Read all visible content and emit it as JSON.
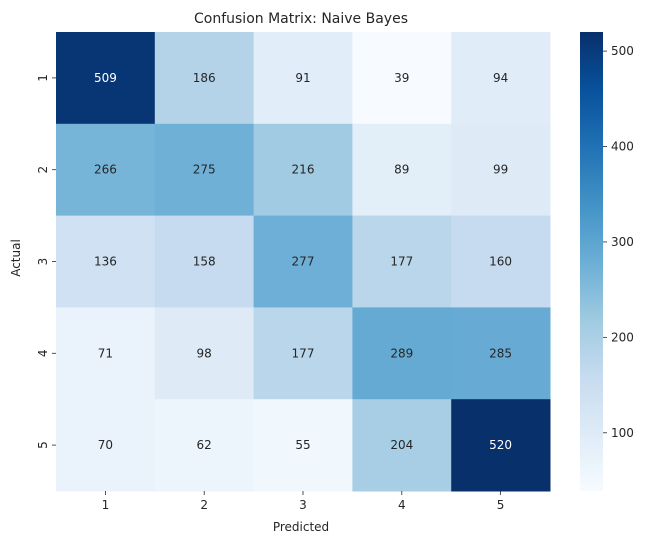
{
  "chart_data": {
    "type": "heatmap",
    "title": "Confusion Matrix: Naive Bayes",
    "xlabel": "Predicted",
    "ylabel": "Actual",
    "x_categories": [
      "1",
      "2",
      "3",
      "4",
      "5"
    ],
    "y_categories": [
      "1",
      "2",
      "3",
      "4",
      "5"
    ],
    "values": [
      [
        509,
        186,
        91,
        39,
        94
      ],
      [
        266,
        275,
        216,
        89,
        99
      ],
      [
        136,
        158,
        277,
        177,
        160
      ],
      [
        71,
        98,
        177,
        289,
        285
      ],
      [
        70,
        62,
        55,
        204,
        520
      ]
    ],
    "colormap": "Blues",
    "vmin": 39,
    "vmax": 520,
    "colorbar_ticks": [
      100,
      200,
      300,
      400,
      500
    ],
    "grid": false
  }
}
